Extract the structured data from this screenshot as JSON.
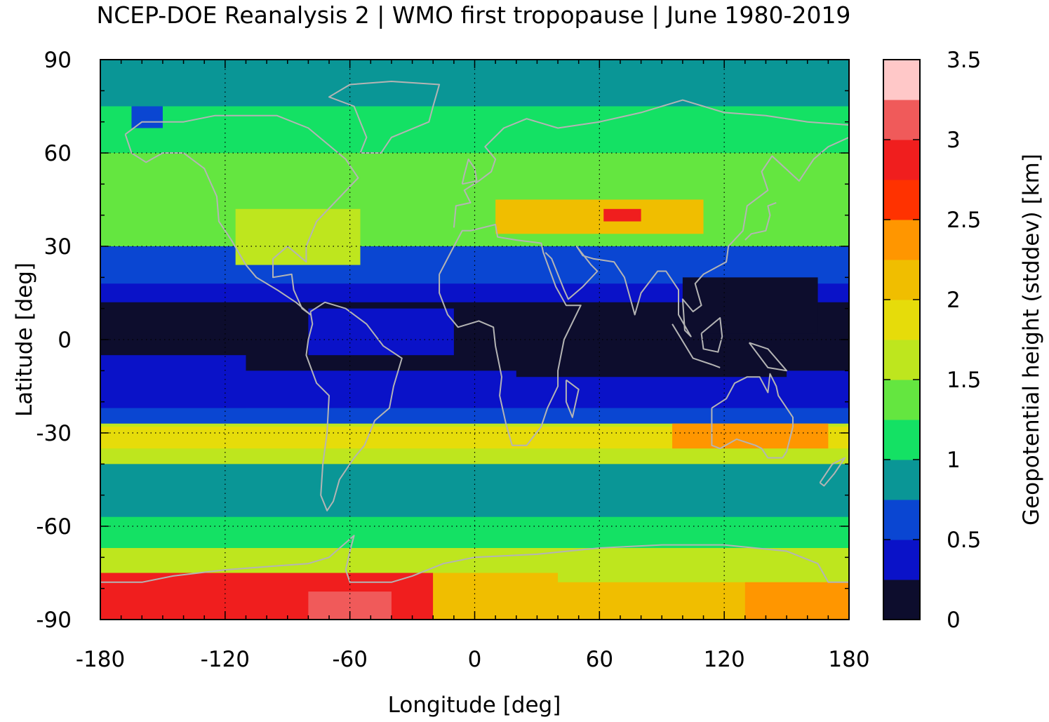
{
  "title": "NCEP-DOE Reanalysis 2 | WMO first tropopause | June 1980-2019",
  "map": {
    "xlabel": "Longitude [deg]",
    "ylabel": "Latitude [deg]",
    "xlim": [
      -180,
      180
    ],
    "ylim": [
      -90,
      90
    ],
    "xticks": [
      "-180",
      "-120",
      "-60",
      "0",
      "60",
      "120",
      "180"
    ],
    "xtick_values": [
      -180,
      -120,
      -60,
      0,
      60,
      120,
      180
    ],
    "yticks": [
      "90",
      "60",
      "30",
      "0",
      "-30",
      "-60",
      "-90"
    ],
    "ytick_values": [
      90,
      60,
      30,
      0,
      -30,
      -60,
      -90
    ],
    "grid": "dotted",
    "coastline_color": "#b4b4b4"
  },
  "colorbar": {
    "label": "Geopotential height (stddev) [km]",
    "ticks": [
      "0",
      "0.5",
      "1",
      "1.5",
      "2",
      "2.5",
      "3",
      "3.5"
    ],
    "tick_values": [
      0,
      0.5,
      1,
      1.5,
      2,
      2.5,
      3,
      3.5
    ],
    "step": 0.25,
    "colors": [
      "#0d0d2d",
      "#0a12c8",
      "#0a46d2",
      "#0a9696",
      "#14e164",
      "#64e640",
      "#bee61e",
      "#e6dc0a",
      "#f0be00",
      "#ff9600",
      "#ff3200",
      "#f01e1e",
      "#f05a5a",
      "#ffc8c8"
    ]
  },
  "chart_data": {
    "type": "heatmap",
    "variable": "Geopotential height (stddev)",
    "unit": "km",
    "lat_bands": [
      {
        "lat": [
          75,
          90
        ],
        "value": 0.9
      },
      {
        "lat": [
          60,
          75
        ],
        "value": 1.05
      },
      {
        "lat": [
          45,
          60
        ],
        "value": 1.3
      },
      {
        "lat": [
          30,
          45
        ],
        "value": 1.35
      },
      {
        "lat": [
          18,
          30
        ],
        "value": 0.6
      },
      {
        "lat": [
          -5,
          18
        ],
        "value": 0.35
      },
      {
        "lat": [
          -22,
          -5
        ],
        "value": 0.3
      },
      {
        "lat": [
          -27,
          -22
        ],
        "value": 0.6
      },
      {
        "lat": [
          -40,
          -27
        ],
        "value": 1.7
      },
      {
        "lat": [
          -57,
          -40
        ],
        "value": 0.9
      },
      {
        "lat": [
          -67,
          -57
        ],
        "value": 1.2
      },
      {
        "lat": [
          -78,
          -67
        ],
        "value": 1.55
      },
      {
        "lat": [
          -90,
          -78
        ],
        "value": 2.1
      }
    ],
    "features": [
      {
        "lon": [
          -180,
          180
        ],
        "lat": [
          -10,
          12
        ],
        "value": 0.1
      },
      {
        "lon": [
          -180,
          -110
        ],
        "lat": [
          -22,
          -5
        ],
        "value": 0.4
      },
      {
        "lon": [
          -115,
          -55
        ],
        "lat": [
          24,
          42
        ],
        "value": 1.6
      },
      {
        "lon": [
          -80,
          -10
        ],
        "lat": [
          -5,
          10
        ],
        "value": 0.45
      },
      {
        "lon": [
          20,
          150
        ],
        "lat": [
          -12,
          0
        ],
        "value": 0.1
      },
      {
        "lon": [
          100,
          165
        ],
        "lat": [
          2,
          20
        ],
        "value": 0.1
      },
      {
        "lon": [
          10,
          110
        ],
        "lat": [
          34,
          45
        ],
        "value": 2.2
      },
      {
        "lon": [
          62,
          80
        ],
        "lat": [
          38,
          42
        ],
        "value": 2.8
      },
      {
        "lon": [
          -180,
          180
        ],
        "lat": [
          -35,
          -28
        ],
        "value": 1.95
      },
      {
        "lon": [
          95,
          170
        ],
        "lat": [
          -35,
          -27
        ],
        "value": 2.3
      },
      {
        "lon": [
          -180,
          -20
        ],
        "lat": [
          -90,
          -75
        ],
        "value": 2.8
      },
      {
        "lon": [
          -80,
          -40
        ],
        "lat": [
          -90,
          -81
        ],
        "value": 3.15
      },
      {
        "lon": [
          -20,
          40
        ],
        "lat": [
          -90,
          -75
        ],
        "value": 2.0
      },
      {
        "lon": [
          130,
          180
        ],
        "lat": [
          -90,
          -78
        ],
        "value": 2.3
      },
      {
        "lon": [
          -165,
          -150
        ],
        "lat": [
          68,
          75
        ],
        "value": 0.6
      }
    ]
  }
}
